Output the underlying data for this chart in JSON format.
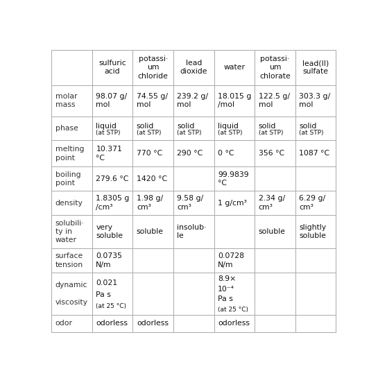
{
  "col_headers": [
    "",
    "sulfuric\nacid",
    "potassi·\num\nchloride",
    "lead\ndioxide",
    "water",
    "potassi·\num\nchlorate",
    "lead(II)\nsulfate"
  ],
  "row_labels": [
    "molar\nmass",
    "phase",
    "melting\npoint",
    "boiling\npoint",
    "density",
    "solubili·\nty in\nwater",
    "surface\ntension",
    "dynamic\n\nviscosity",
    "odor"
  ],
  "cell_data": [
    [
      "98.07 g/\nmol",
      "74.55 g/\nmol",
      "239.2 g/\nmol",
      "18.015 g\n/mol",
      "122.5 g/\nmol",
      "303.3 g/\nmol"
    ],
    [
      "liquid\n(at STP)",
      "solid\n(at STP)",
      "solid\n(at STP)",
      "liquid\n(at STP)",
      "solid\n(at STP)",
      "solid\n(at STP)"
    ],
    [
      "10.371\n°C",
      "770 °C",
      "290 °C",
      "0 °C",
      "356 °C",
      "1087 °C"
    ],
    [
      "279.6 °C",
      "1420 °C",
      "",
      "99.9839\n°C",
      "",
      ""
    ],
    [
      "1.8305 g\n/cm³",
      "1.98 g/\ncm³",
      "9.58 g/\ncm³",
      "1 g/cm³",
      "2.34 g/\ncm³",
      "6.29 g/\ncm³"
    ],
    [
      "very\nsoluble",
      "soluble",
      "insolub·\nle",
      "",
      "soluble",
      "slightly\nsoluble"
    ],
    [
      "0.0735\nN/m",
      "",
      "",
      "0.0728\nN/m",
      "",
      ""
    ],
    [
      "0.021\nPa s\n(at 25 °C)",
      "",
      "",
      "8.9×\n10⁻⁴\nPa s\n(at 25 °C)",
      "",
      ""
    ],
    [
      "odorless",
      "odorless",
      "",
      "odorless",
      "",
      ""
    ]
  ],
  "phase_small": [
    [
      false,
      false,
      false,
      false,
      false,
      false
    ],
    [
      true,
      true,
      true,
      true,
      true,
      true
    ],
    [
      false,
      false,
      false,
      false,
      false,
      false
    ],
    [
      false,
      false,
      false,
      false,
      false,
      false
    ],
    [
      false,
      false,
      false,
      false,
      false,
      false
    ],
    [
      false,
      false,
      false,
      false,
      false,
      false
    ],
    [
      false,
      false,
      false,
      false,
      false,
      false
    ],
    [
      false,
      false,
      false,
      false,
      false,
      false
    ],
    [
      false,
      false,
      false,
      false,
      false,
      false
    ]
  ],
  "small_suffix": [
    [
      "",
      "",
      "",
      "",
      "",
      ""
    ],
    [
      "(at STP)",
      "(at STP)",
      "(at STP)",
      "(at STP)",
      "(at STP)",
      "(at STP)"
    ],
    [
      "",
      "",
      "",
      "",
      "",
      ""
    ],
    [
      "",
      "",
      "",
      "",
      "",
      ""
    ],
    [
      "",
      "",
      "",
      "",
      "",
      ""
    ],
    [
      "",
      "",
      "",
      "",
      "",
      ""
    ],
    [
      "",
      "",
      "",
      "",
      "",
      ""
    ],
    [
      "(at 25 °C)",
      "",
      "",
      "(at 25 °C)",
      "",
      ""
    ],
    [
      "",
      "",
      "",
      "",
      "",
      ""
    ]
  ],
  "border_color": "#aaaaaa",
  "bg_color": "#ffffff",
  "text_color": "#111111",
  "label_color": "#333333",
  "font_size": 7.8,
  "small_font_size": 6.5,
  "header_font_size": 7.8
}
